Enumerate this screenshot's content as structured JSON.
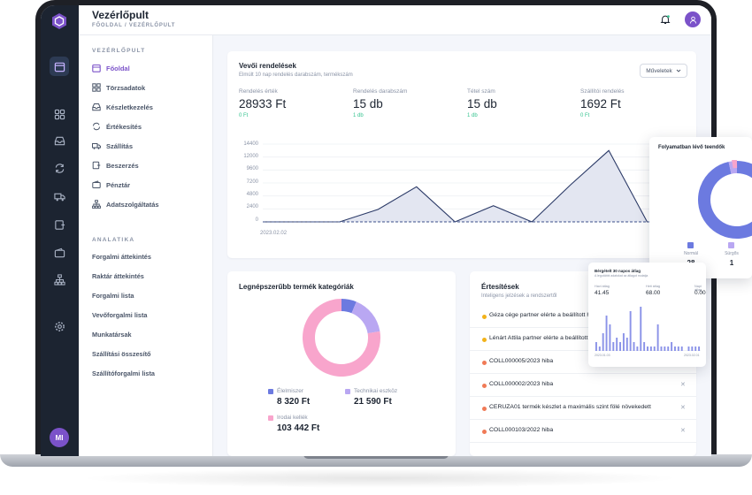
{
  "header": {
    "title": "Vezérlőpult",
    "breadcrumb": "FŐOLDAL  /  VEZÉRLŐPULT"
  },
  "rail": {
    "avatar_initials": "MI"
  },
  "sidebar": {
    "section_main": "VEZÉRLŐPULT",
    "items": [
      {
        "label": "Főoldal",
        "icon": "calendar-icon"
      },
      {
        "label": "Törzsadatok",
        "icon": "grid-icon"
      },
      {
        "label": "Készletkezelés",
        "icon": "inbox-icon"
      },
      {
        "label": "Értékesítés",
        "icon": "refresh-icon"
      },
      {
        "label": "Szállítás",
        "icon": "truck-icon"
      },
      {
        "label": "Beszerzés",
        "icon": "cart-icon"
      },
      {
        "label": "Pénztár",
        "icon": "wallet-icon"
      },
      {
        "label": "Adatszolgáltatás",
        "icon": "sitemap-icon"
      }
    ],
    "section_analytics": "ANALATIKA",
    "links": [
      "Forgalmi áttekintés",
      "Raktár áttekintés",
      "Forgalmi lista",
      "Vevőforgalmi lista",
      "Munkatársak",
      "Szállítási összesítő",
      "Szállítóforgalmi lista"
    ]
  },
  "orders": {
    "title": "Vevői rendelések",
    "subtitle": "Elmúlt 10 nap rendelés darabszám, termékszám",
    "actions_label": "Műveletek",
    "stats": [
      {
        "label": "Rendelés érték",
        "value": "28933 Ft",
        "sub": "0 Ft"
      },
      {
        "label": "Rendelés darabszám",
        "value": "15 db",
        "sub": "1 db"
      },
      {
        "label": "Tétel szám",
        "value": "15 db",
        "sub": "1 db"
      },
      {
        "label": "Szállítói rendelés",
        "value": "1692 Ft",
        "sub": "0 Ft"
      }
    ]
  },
  "chart_data": {
    "type": "area",
    "title": "",
    "y_ticks": [
      "14400",
      "12000",
      "9600",
      "7200",
      "4800",
      "2400",
      "0"
    ],
    "ylim": [
      0,
      14400
    ],
    "x_tick_labels": [
      "2023.02.02"
    ],
    "values": [
      0,
      0,
      0,
      2300,
      6500,
      0,
      3000,
      0,
      6800,
      13200,
      0,
      0
    ],
    "grid": true
  },
  "categories_card": {
    "title": "Legnépszerűbb termék kategóriák",
    "items": [
      {
        "label": "Élelmiszer",
        "value": "8 320 Ft",
        "color": "#6c7ae0",
        "share": 8320
      },
      {
        "label": "Technikai eszköz",
        "value": "21 590 Ft",
        "color": "#b9a7f2",
        "share": 21590
      },
      {
        "label": "Irodai kellék",
        "value": "103 442 Ft",
        "color": "#f8a5cc",
        "share": 103442
      }
    ]
  },
  "notifications": {
    "title": "Értesítések",
    "subtitle": "Inteligens jelzések a rendszertől",
    "rows": [
      {
        "text": "Géza cége partner elérte a beállított h",
        "color": "#f2b21a",
        "closable": false
      },
      {
        "text": "Lénárt Attila partner elérte a beállított",
        "color": "#f2b21a",
        "closable": false
      },
      {
        "text": "COLL000005/2023 hiba",
        "color": "#f07a56",
        "closable": true
      },
      {
        "text": "COLL000002/2023 hiba",
        "color": "#f07a56",
        "closable": true
      },
      {
        "text": "CERUZA01 termék készlet a maximális szint fölé növekedett",
        "color": "#f07a56",
        "closable": true
      },
      {
        "text": "COLL000103/2022 hiba",
        "color": "#f07a56",
        "closable": true
      }
    ]
  },
  "tasks_popup": {
    "title": "Folyamatban lévő teendők",
    "items": [
      {
        "label": "Normál",
        "value": "28",
        "color": "#6c7ae0"
      },
      {
        "label": "Sürgős",
        "value": "1",
        "color": "#b9a7f2"
      }
    ]
  },
  "bars_popup": {
    "title": "Bérgételt 30 napos átlag",
    "subtitle": "A legutóbbi adatokat az átlagot mutatja",
    "stats": [
      {
        "label": "Havi átlag",
        "value": "41.45"
      },
      {
        "label": "Heti átlag",
        "value": "68.00"
      },
      {
        "label": "Napi átlag",
        "value": "0.00"
      }
    ],
    "bars": [
      2,
      1,
      4,
      8,
      6,
      2,
      3,
      2,
      4,
      3,
      9,
      2,
      1,
      10,
      2,
      1,
      1,
      1,
      6,
      1,
      1,
      1,
      2,
      1,
      1,
      1,
      0,
      1,
      1,
      1,
      1
    ],
    "x_start": "2023.01.03",
    "x_end": "2023.02.01"
  }
}
